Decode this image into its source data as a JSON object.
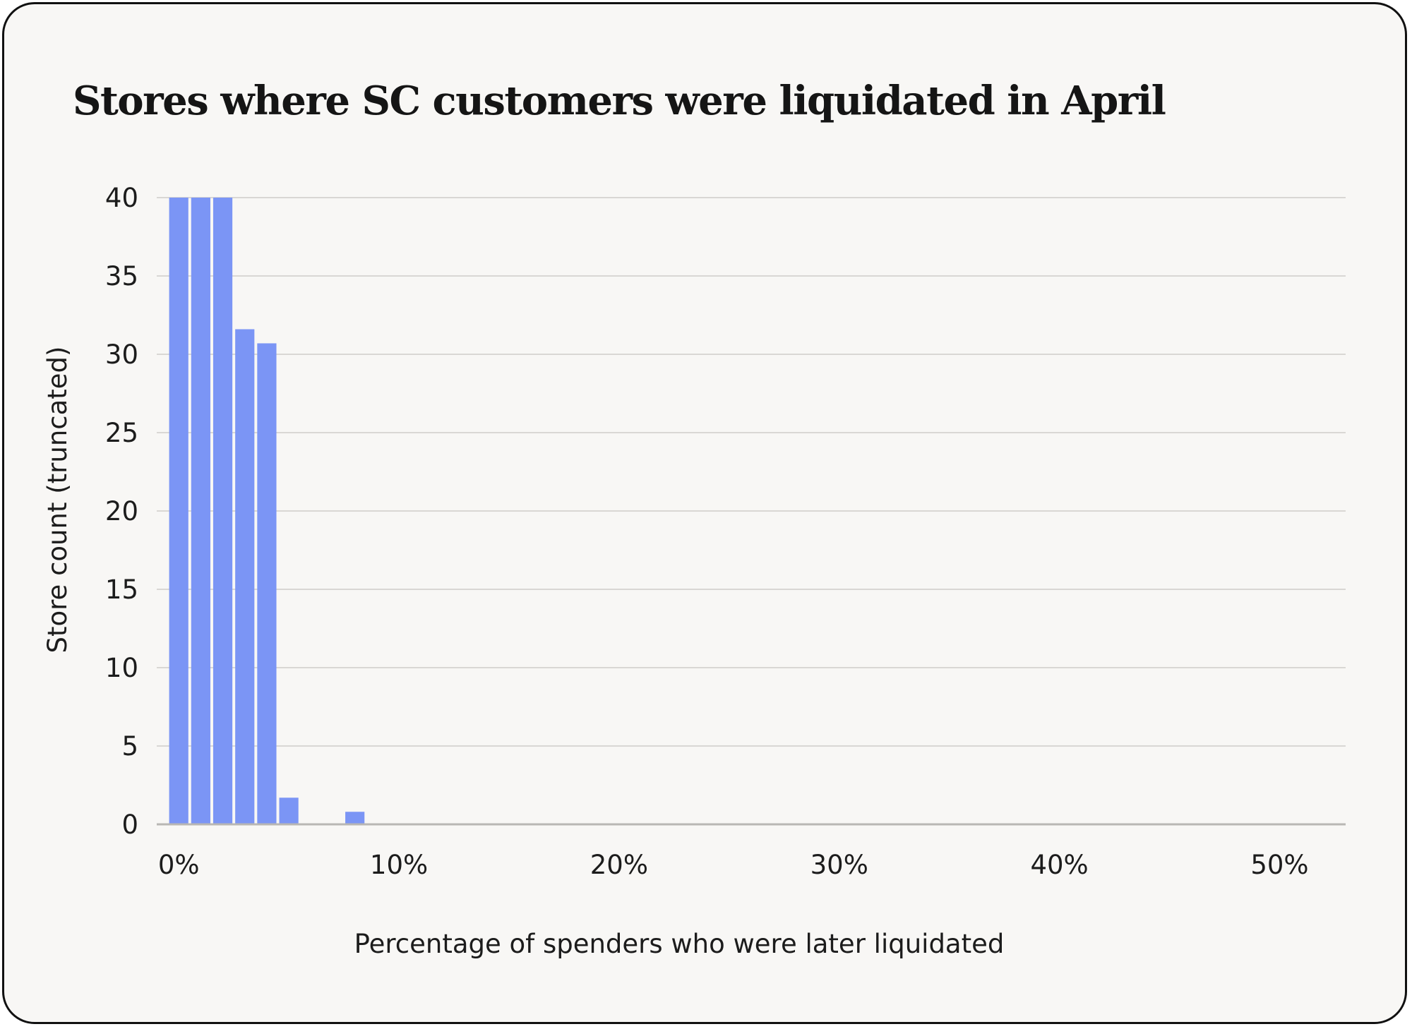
{
  "chart_data": {
    "type": "bar",
    "title": "Stores where SC customers were liquidated in April",
    "xlabel": "Percentage of spenders who were later liquidated",
    "ylabel": "Store count (truncated)",
    "x_tick_labels": [
      "0%",
      "10%",
      "20%",
      "30%",
      "40%",
      "50%"
    ],
    "x_tick_values": [
      0,
      10,
      20,
      30,
      40,
      50
    ],
    "y_tick_labels": [
      "0",
      "5",
      "10",
      "15",
      "20",
      "25",
      "30",
      "35",
      "40"
    ],
    "y_tick_values": [
      0,
      5,
      10,
      15,
      20,
      25,
      30,
      35,
      40
    ],
    "xlim": [
      -1,
      53
    ],
    "ylim": [
      0,
      40
    ],
    "bins": [
      {
        "x0": -0.5,
        "x1": 0.5,
        "value": 40
      },
      {
        "x0": 0.5,
        "x1": 1.5,
        "value": 40
      },
      {
        "x0": 1.5,
        "x1": 2.5,
        "value": 40
      },
      {
        "x0": 2.5,
        "x1": 3.5,
        "value": 31.6
      },
      {
        "x0": 3.5,
        "x1": 4.5,
        "value": 30.7
      },
      {
        "x0": 4.5,
        "x1": 5.5,
        "value": 1.7
      },
      {
        "x0": 7.5,
        "x1": 8.5,
        "value": 0.8
      }
    ],
    "bar_color": "#7b95f5",
    "grid": true
  }
}
